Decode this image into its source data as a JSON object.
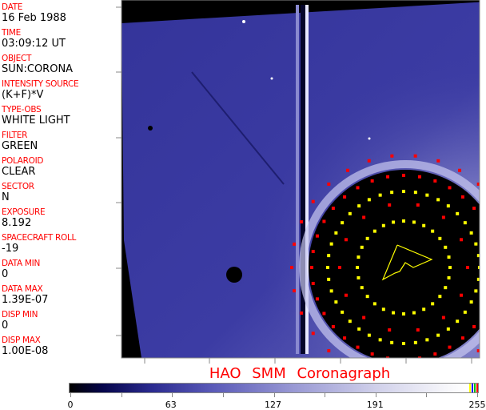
{
  "header_fields": [
    {
      "label": "DATE",
      "value": "16 Feb 1988"
    },
    {
      "label": "TIME",
      "value": "03:09:12 UT"
    },
    {
      "label": "OBJECT",
      "value": "SUN:CORONA"
    },
    {
      "label": "INTENSITY SOURCE",
      "value": "(K+F)*V"
    },
    {
      "label": "TYPE-OBS",
      "value": "WHITE LIGHT"
    },
    {
      "label": "FILTER",
      "value": "GREEN"
    },
    {
      "label": "POLAROID",
      "value": "CLEAR"
    },
    {
      "label": "SECTOR",
      "value": "N"
    },
    {
      "label": "EXPOSURE",
      "value": "8.192"
    },
    {
      "label": "SPACECRAFT ROLL",
      "value": "-19"
    },
    {
      "label": "DATA MIN",
      "value": "0"
    },
    {
      "label": "DATA MAX",
      "value": "1.39E-07"
    },
    {
      "label": "DISP MIN",
      "value": "0"
    },
    {
      "label": "DISP MAX",
      "value": "1.00E-08"
    }
  ],
  "title": "HAO  SMM  Coronagraph",
  "colorbar": {
    "tick_labels": [
      "0",
      "63",
      "127",
      "191",
      "255"
    ],
    "colors": {
      "low": "#000000",
      "mid": "#5a5ab8",
      "high": "#ffffff",
      "accent": "#ff0000",
      "grid": "#ffff00"
    }
  },
  "image": {
    "description_colors": {
      "background": "#2a2a8f",
      "occulter": "#000000",
      "marker_red": "#ff0000",
      "marker_yellow": "#ffff00"
    }
  }
}
